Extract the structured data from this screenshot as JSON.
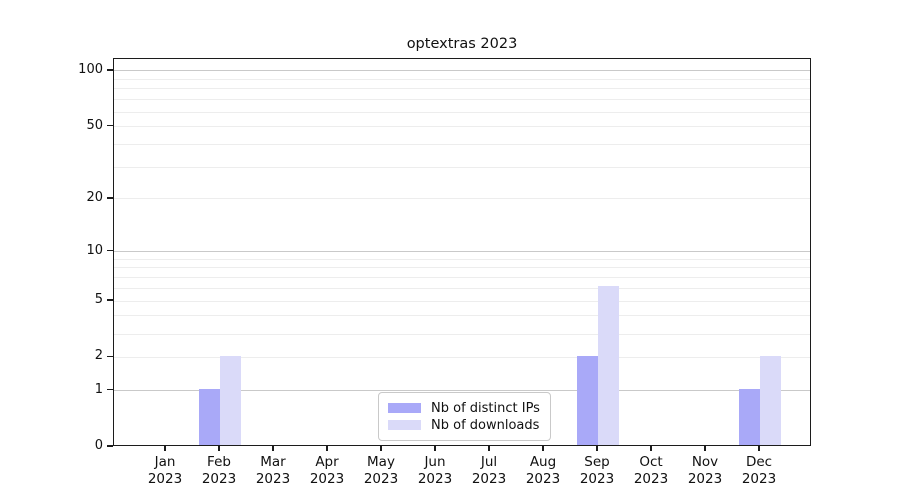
{
  "chart_data": {
    "type": "bar",
    "title": "optextras 2023",
    "categories": [
      "Jan 2023",
      "Feb 2023",
      "Mar 2023",
      "Apr 2023",
      "May 2023",
      "Jun 2023",
      "Jul 2023",
      "Aug 2023",
      "Sep 2023",
      "Oct 2023",
      "Nov 2023",
      "Dec 2023"
    ],
    "series": [
      {
        "name": "Nb of distinct IPs",
        "color": "#a9a9f8",
        "values": [
          0,
          1,
          0,
          0,
          0,
          0,
          0,
          0,
          2,
          0,
          0,
          1
        ]
      },
      {
        "name": "Nb of downloads",
        "color": "#dadaf9",
        "values": [
          0,
          2,
          0,
          0,
          0,
          0,
          0,
          0,
          6,
          0,
          0,
          2
        ]
      }
    ],
    "xlabel": "",
    "ylabel": "",
    "yscale": "symlog-log1p",
    "yticks": [
      0,
      1,
      2,
      5,
      10,
      20,
      50,
      100
    ],
    "ytick_labels": [
      "0",
      "1",
      "2",
      "5",
      "10",
      "20",
      "50",
      "100"
    ],
    "ylim": [
      0,
      116
    ],
    "y_gridlines_major": [
      1,
      10,
      100
    ],
    "y_gridlines_minor": [
      2,
      3,
      4,
      5,
      6,
      7,
      8,
      9,
      20,
      30,
      40,
      50,
      60,
      70,
      80,
      90
    ],
    "grid": true,
    "legend_position": "lower-center",
    "colors": {
      "frame": "#1c1c1c",
      "grid_major": "#c9c9c9",
      "grid_minor": "#ededed",
      "text": "#111111",
      "legend_border": "#c9c9c9",
      "background": "#ffffff"
    }
  }
}
